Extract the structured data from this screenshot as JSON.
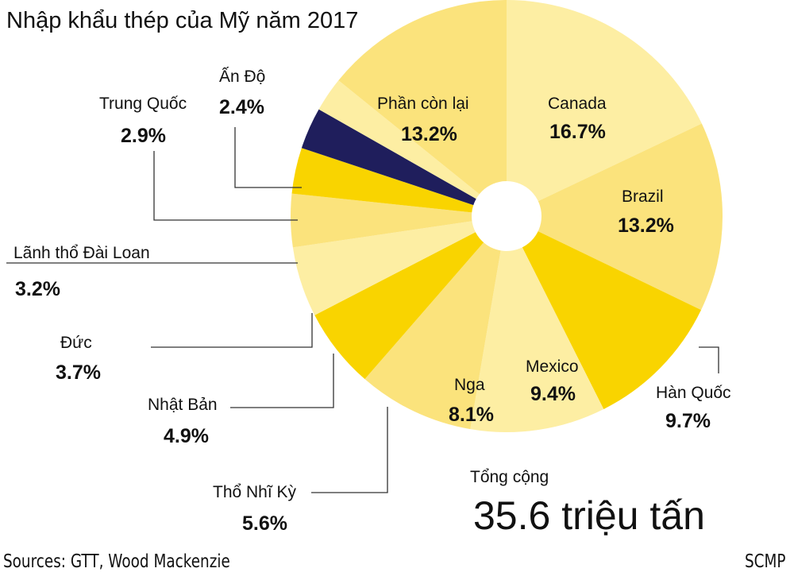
{
  "chart_data": {
    "type": "pie",
    "title": "Nhập khẩu thép của Mỹ năm 2017",
    "slices": [
      {
        "label": "Canada",
        "value": 16.7,
        "display": "16.7%",
        "color": "#fdeea3"
      },
      {
        "label": "Brazil",
        "value": 13.2,
        "display": "13.2%",
        "color": "#fbe37c"
      },
      {
        "label": "Hàn Quốc",
        "value": 9.7,
        "display": "9.7%",
        "color": "#f9d400"
      },
      {
        "label": "Mexico",
        "value": 9.4,
        "display": "9.4%",
        "color": "#fdeea3"
      },
      {
        "label": "Nga",
        "value": 8.1,
        "display": "8.1%",
        "color": "#fbe37c"
      },
      {
        "label": "Thổ Nhĩ Kỳ",
        "value": 5.6,
        "display": "5.6%",
        "color": "#f9d400"
      },
      {
        "label": "Nhật Bản",
        "value": 4.9,
        "display": "4.9%",
        "color": "#fdeea3"
      },
      {
        "label": "Đức",
        "value": 3.7,
        "display": "3.7%",
        "color": "#fbe37c"
      },
      {
        "label": "Lãnh thổ Đài Loan",
        "value": 3.2,
        "display": "3.2%",
        "color": "#f9d400"
      },
      {
        "label": "Trung Quốc",
        "value": 2.9,
        "display": "2.9%",
        "color": "#1f1e5c"
      },
      {
        "label": "Ấn Độ",
        "value": 2.4,
        "display": "2.4%",
        "color": "#fdeea3"
      },
      {
        "label": "Phần còn lại",
        "value": 13.2,
        "display": "13.2%",
        "color": "#fbe37c"
      }
    ],
    "total_label": "Tổng cộng",
    "total_value": "35.6 triệu tấn"
  },
  "footer": {
    "source": "Sources: GTT, Wood Mackenzie",
    "credit": "SCMP"
  }
}
